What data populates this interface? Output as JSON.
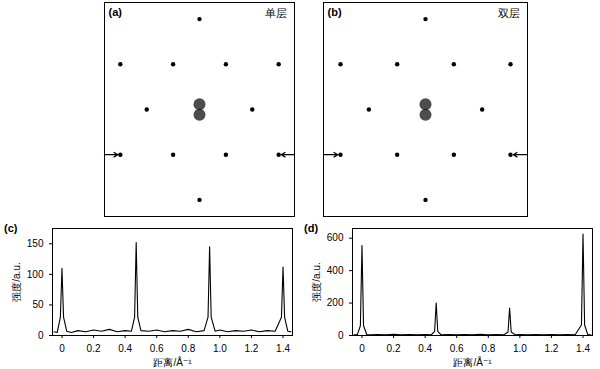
{
  "chart_data": [
    {
      "type": "scatter",
      "annotations": [
        "(a)",
        "单层"
      ],
      "x": [
        1,
        -1,
        0.5,
        -0.5,
        0.5,
        -0.5,
        0,
        0,
        1.5,
        -1.5,
        1.5,
        -1.5
      ],
      "y": [
        0,
        0,
        0.866,
        0.866,
        -0.866,
        -0.866,
        1.732,
        -1.732,
        0.866,
        0.866,
        -0.866,
        -0.866
      ],
      "beam": {
        "x": [
          0,
          0
        ],
        "y": [
          0.1,
          -0.1
        ]
      },
      "profile_y": -0.866,
      "xlim": [
        -1.8,
        1.8
      ],
      "ylim": [
        -2.05,
        2.05
      ],
      "tick_labels": false,
      "color": "#000000",
      "marker": "circle"
    },
    {
      "type": "scatter",
      "annotations": [
        "(b)",
        "双层"
      ],
      "x": [
        1,
        -1,
        0.5,
        -0.5,
        0.5,
        -0.5,
        0,
        0,
        1.5,
        -1.5,
        1.5,
        -1.5
      ],
      "y": [
        0,
        0,
        0.866,
        0.866,
        -0.866,
        -0.866,
        1.732,
        -1.732,
        0.866,
        0.866,
        -0.866,
        -0.866
      ],
      "beam": {
        "x": [
          0,
          0
        ],
        "y": [
          0.1,
          -0.1
        ]
      },
      "profile_y": -0.866,
      "xlim": [
        -1.8,
        1.8
      ],
      "ylim": [
        -2.05,
        2.05
      ],
      "tick_labels": false,
      "color": "#000000",
      "marker": "circle"
    },
    {
      "type": "line",
      "annotations": [
        "(c)"
      ],
      "xlabel": "距离/Å⁻¹",
      "ylabel": "强度/a.u.",
      "x": [
        -0.05,
        -0.03,
        -0.01,
        0,
        0.01,
        0.03,
        0.06,
        0.1,
        0.15,
        0.2,
        0.25,
        0.3,
        0.35,
        0.4,
        0.44,
        0.46,
        0.47,
        0.48,
        0.5,
        0.55,
        0.6,
        0.65,
        0.7,
        0.75,
        0.8,
        0.85,
        0.9,
        0.925,
        0.935,
        0.945,
        0.97,
        1.0,
        1.05,
        1.1,
        1.15,
        1.2,
        1.25,
        1.3,
        1.35,
        1.39,
        1.4,
        1.41,
        1.43,
        1.45
      ],
      "values": [
        6,
        5,
        30,
        110,
        30,
        7,
        5,
        8,
        6,
        9,
        7,
        10,
        6,
        8,
        7,
        30,
        152,
        30,
        8,
        7,
        9,
        6,
        8,
        7,
        10,
        6,
        8,
        30,
        145,
        30,
        7,
        9,
        6,
        8,
        7,
        9,
        6,
        8,
        7,
        30,
        112,
        30,
        7,
        6
      ],
      "xlim": [
        -0.06,
        1.46
      ],
      "ylim": [
        0,
        175
      ],
      "xticks": [
        0,
        0.2,
        0.4,
        0.6,
        0.8,
        {
          "value": 1,
          "label": "1.0"
        },
        1.2,
        1.4
      ],
      "yticks": [
        0,
        50,
        100,
        150
      ],
      "color": "#000000"
    },
    {
      "type": "line",
      "annotations": [
        "(d)"
      ],
      "xlabel": "距离/Å⁻¹",
      "ylabel": "强度/a.u.",
      "x": [
        -0.05,
        -0.03,
        -0.01,
        0,
        0.01,
        0.03,
        0.06,
        0.1,
        0.15,
        0.2,
        0.25,
        0.3,
        0.35,
        0.4,
        0.44,
        0.46,
        0.47,
        0.48,
        0.5,
        0.55,
        0.6,
        0.65,
        0.7,
        0.75,
        0.8,
        0.85,
        0.9,
        0.925,
        0.935,
        0.945,
        0.97,
        1.0,
        1.05,
        1.1,
        1.15,
        1.2,
        1.25,
        1.3,
        1.35,
        1.39,
        1.4,
        1.41,
        1.43,
        1.45
      ],
      "values": [
        5,
        4,
        60,
        555,
        60,
        6,
        4,
        6,
        5,
        7,
        5,
        6,
        4,
        6,
        5,
        25,
        200,
        25,
        5,
        6,
        4,
        6,
        5,
        7,
        4,
        6,
        5,
        22,
        170,
        22,
        5,
        6,
        4,
        6,
        5,
        6,
        4,
        6,
        5,
        65,
        625,
        65,
        5,
        4
      ],
      "xlim": [
        -0.06,
        1.46
      ],
      "ylim": [
        0,
        660
      ],
      "xticks": [
        0,
        0.2,
        0.4,
        0.6,
        0.8,
        {
          "value": 1,
          "label": "1.0"
        },
        1.2,
        1.4
      ],
      "yticks": [
        0,
        200,
        400,
        600
      ],
      "color": "#000000"
    }
  ]
}
